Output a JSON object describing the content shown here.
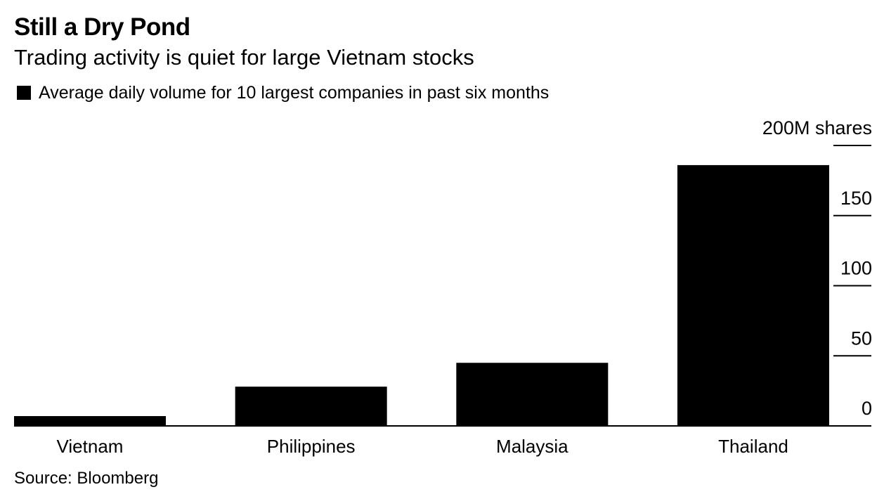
{
  "title": "Still a Dry Pond",
  "subtitle": "Trading activity is quiet for large Vietnam stocks",
  "source": "Source: Bloomberg",
  "colors": {
    "bar": "#000000",
    "axis": "#000000",
    "background": "#ffffff"
  },
  "chart_data": {
    "type": "bar",
    "title": "Still a Dry Pond",
    "subtitle": "Trading activity is quiet for large Vietnam stocks",
    "legend_position": "top-left",
    "categories": [
      "Vietnam",
      "Philippines",
      "Malaysia",
      "Thailand"
    ],
    "series": [
      {
        "name": "Average daily volume for 10 largest companies in past six months",
        "values": [
          7,
          28,
          45,
          186
        ]
      }
    ],
    "ylim": [
      0,
      200
    ],
    "yticks": [
      0,
      50,
      100,
      150,
      200
    ],
    "ytick_labels": [
      "0",
      "50",
      "100",
      "150",
      "200M shares"
    ],
    "y_axis_side": "right",
    "grid": false
  }
}
